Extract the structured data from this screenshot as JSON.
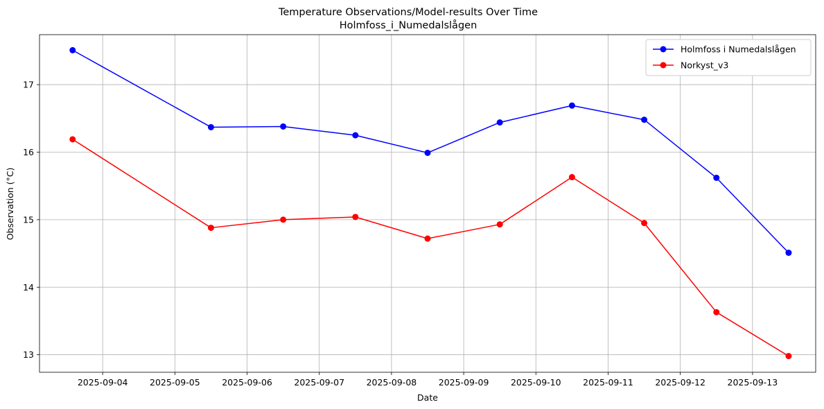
{
  "chart_data": {
    "type": "line",
    "title": "Temperature Observations/Model-results Over Time",
    "subtitle": "Holmfoss_i_Numedalslågen",
    "xlabel": "Date",
    "ylabel": "Observation (°C)",
    "grid": true,
    "legend_position": "top-right",
    "x_ticks": [
      "2025-09-04",
      "2025-09-05",
      "2025-09-06",
      "2025-09-07",
      "2025-09-08",
      "2025-09-09",
      "2025-09-10",
      "2025-09-11",
      "2025-09-12",
      "2025-09-13"
    ],
    "y_ticks": [
      13,
      14,
      15,
      16,
      17
    ],
    "xlim": [
      "2025-09-03 03:00",
      "2025-09-13 21:00"
    ],
    "ylim": [
      12.74,
      17.74
    ],
    "x": [
      "2025-09-03 14:00",
      "2025-09-05 12:00",
      "2025-09-06 12:00",
      "2025-09-07 12:00",
      "2025-09-08 12:00",
      "2025-09-09 12:00",
      "2025-09-10 12:00",
      "2025-09-11 12:00",
      "2025-09-12 12:00",
      "2025-09-13 12:00"
    ],
    "series": [
      {
        "name": "Holmfoss i Numedalslågen",
        "color": "#0000ff",
        "values": [
          17.51,
          16.37,
          16.38,
          16.25,
          15.99,
          16.44,
          16.69,
          16.48,
          15.62,
          14.51
        ]
      },
      {
        "name": "Norkyst_v3",
        "color": "#ff0000",
        "values": [
          16.19,
          14.88,
          15.0,
          15.04,
          14.72,
          14.93,
          15.63,
          14.95,
          13.63,
          12.98
        ]
      }
    ]
  }
}
